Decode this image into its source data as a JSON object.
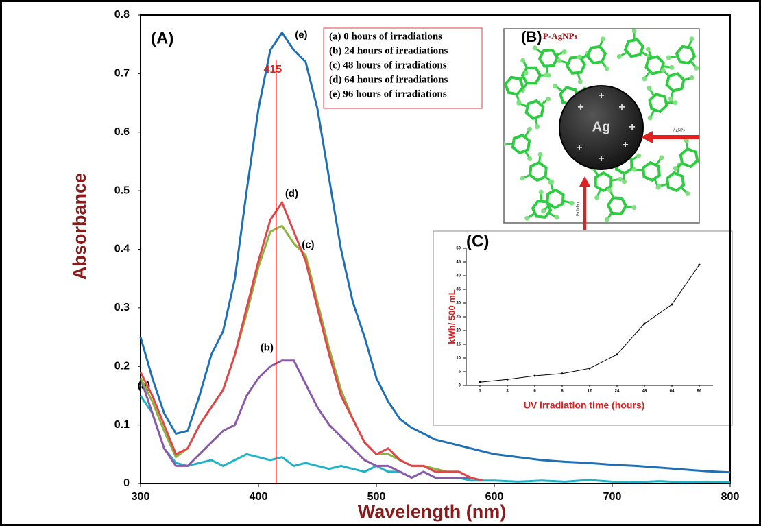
{
  "chart_data": [
    {
      "type": "line",
      "title": "(A)",
      "x_label": "Wavelength (nm)",
      "y_label": "Absorbance",
      "x": [
        300,
        310,
        320,
        330,
        340,
        350,
        360,
        370,
        380,
        390,
        400,
        410,
        420,
        430,
        440,
        450,
        460,
        470,
        480,
        490,
        500,
        510,
        520,
        530,
        540,
        550,
        560,
        570,
        580,
        590,
        600,
        620,
        640,
        660,
        680,
        700,
        720,
        740,
        760,
        780,
        800
      ],
      "xlim": [
        300,
        800
      ],
      "xticks": [
        300,
        400,
        500,
        600,
        700,
        800
      ],
      "ylim": [
        0,
        0.8
      ],
      "yticks": [
        0,
        0.1,
        0.2,
        0.3,
        0.4,
        0.5,
        0.6,
        0.7,
        0.8
      ],
      "peak_wavelength": 415,
      "series": [
        {
          "name": "(a) 0 hours of irradiations",
          "label": "(a)",
          "color": "#1fb3c8",
          "values": [
            0.15,
            0.12,
            0.06,
            0.035,
            0.03,
            0.035,
            0.04,
            0.03,
            0.04,
            0.05,
            0.045,
            0.04,
            0.045,
            0.03,
            0.035,
            0.03,
            0.025,
            0.03,
            0.025,
            0.02,
            0.03,
            0.02,
            0.02,
            0.01,
            0.02,
            0.01,
            0.01,
            0.01,
            0.005,
            0.005,
            0.005,
            0.003,
            0.005,
            0.003,
            0.006,
            0.003,
            0.002,
            0.004,
            0.002,
            0.003,
            0.002
          ]
        },
        {
          "name": "(b) 24 hours of irradiations",
          "label": "(b)",
          "color": "#8a5aa8",
          "values": [
            0.18,
            0.12,
            0.06,
            0.03,
            0.03,
            0.05,
            0.07,
            0.09,
            0.1,
            0.15,
            0.18,
            0.2,
            0.21,
            0.21,
            0.17,
            0.13,
            0.1,
            0.08,
            0.06,
            0.04,
            0.03,
            0.03,
            0.02,
            0.01,
            0.02,
            0.01,
            0.01,
            0.01,
            0.01,
            null,
            null,
            null,
            null,
            null,
            null,
            null,
            null,
            null,
            null,
            null,
            null
          ]
        },
        {
          "name": "(c) 48 hours of irradiations",
          "label": "(c)",
          "color": "#8ab43c",
          "values": [
            0.18,
            0.14,
            0.09,
            0.045,
            0.06,
            0.1,
            0.13,
            0.16,
            0.22,
            0.29,
            0.37,
            0.43,
            0.44,
            0.41,
            0.39,
            0.31,
            0.23,
            0.16,
            0.11,
            0.07,
            0.05,
            0.05,
            0.04,
            0.03,
            0.03,
            0.025,
            0.02,
            0.02,
            0.01,
            null,
            null,
            null,
            null,
            null,
            null,
            null,
            null,
            null,
            null,
            null,
            null
          ]
        },
        {
          "name": "(d) 64 hours of irradiations",
          "label": "(d)",
          "color": "#e0474c",
          "values": [
            0.19,
            0.15,
            0.1,
            0.05,
            0.06,
            0.1,
            0.13,
            0.16,
            0.22,
            0.3,
            0.38,
            0.45,
            0.48,
            0.43,
            0.38,
            0.3,
            0.22,
            0.15,
            0.11,
            0.07,
            0.05,
            0.06,
            0.04,
            0.03,
            0.03,
            0.02,
            0.02,
            0.02,
            0.01,
            0.005,
            null,
            null,
            null,
            null,
            null,
            null,
            null,
            null,
            null,
            null,
            null
          ]
        },
        {
          "name": "(e) 96 hours of irradiations",
          "label": "(e)",
          "color": "#1f6fb5",
          "values": [
            0.25,
            0.18,
            0.12,
            0.085,
            0.09,
            0.15,
            0.22,
            0.26,
            0.35,
            0.5,
            0.64,
            0.74,
            0.77,
            0.74,
            0.72,
            0.64,
            0.52,
            0.4,
            0.31,
            0.25,
            0.18,
            0.14,
            0.11,
            0.095,
            0.085,
            0.075,
            0.07,
            0.065,
            0.06,
            0.055,
            0.05,
            0.045,
            0.04,
            0.037,
            0.035,
            0.032,
            0.03,
            0.027,
            0.024,
            0.021,
            0.019
          ]
        }
      ]
    },
    {
      "type": "line",
      "title": "(C)",
      "x_label": "UV irradiation time (hours)",
      "y_label": "kWh/ 500 mL",
      "categories": [
        "1",
        "3",
        "6",
        "8",
        "12",
        "24",
        "48",
        "64",
        "96"
      ],
      "values": [
        1.2,
        2.2,
        3.5,
        4.3,
        6.2,
        11.3,
        22.5,
        29.5,
        44
      ],
      "color": "#000000",
      "ylim": [
        0,
        50
      ],
      "yticks": [
        0,
        5,
        10,
        15,
        20,
        25,
        30,
        35,
        40,
        45,
        50
      ]
    }
  ],
  "diagram": {
    "title": "(B)",
    "label": "P-AgNPs",
    "core": "Ag",
    "charge": "+",
    "arrow_right": "AgNPs",
    "arrow_bottom": "Pullulan"
  }
}
